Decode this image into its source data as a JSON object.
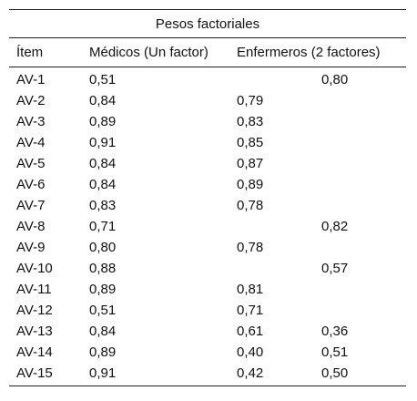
{
  "table": {
    "caption": "Pesos factoriales",
    "headers": [
      "Ítem",
      "Médicos (Un factor)",
      "Enfermeros (2 factores)"
    ],
    "rows": [
      [
        "AV-1",
        "0,51",
        "",
        "0,80"
      ],
      [
        "AV-2",
        "0,84",
        "0,79",
        ""
      ],
      [
        "AV-3",
        "0,89",
        "0,83",
        ""
      ],
      [
        "AV-4",
        "0,91",
        "0,85",
        ""
      ],
      [
        "AV-5",
        "0,84",
        "0,87",
        ""
      ],
      [
        "AV-6",
        "0,84",
        "0,89",
        ""
      ],
      [
        "AV-7",
        "0,83",
        "0,78",
        ""
      ],
      [
        "AV-8",
        "0,71",
        "",
        "0,82"
      ],
      [
        "AV-9",
        "0,80",
        "0,78",
        ""
      ],
      [
        "AV-10",
        "0,88",
        "",
        "0,57"
      ],
      [
        "AV-11",
        "0,89",
        "0,81",
        ""
      ],
      [
        "AV-12",
        "0,51",
        "0,71",
        ""
      ],
      [
        "AV-13",
        "0,84",
        "0,61",
        "0,36"
      ],
      [
        "AV-14",
        "0,89",
        "0,40",
        "0,51"
      ],
      [
        "AV-15",
        "0,91",
        "0,42",
        "0,50"
      ]
    ]
  }
}
